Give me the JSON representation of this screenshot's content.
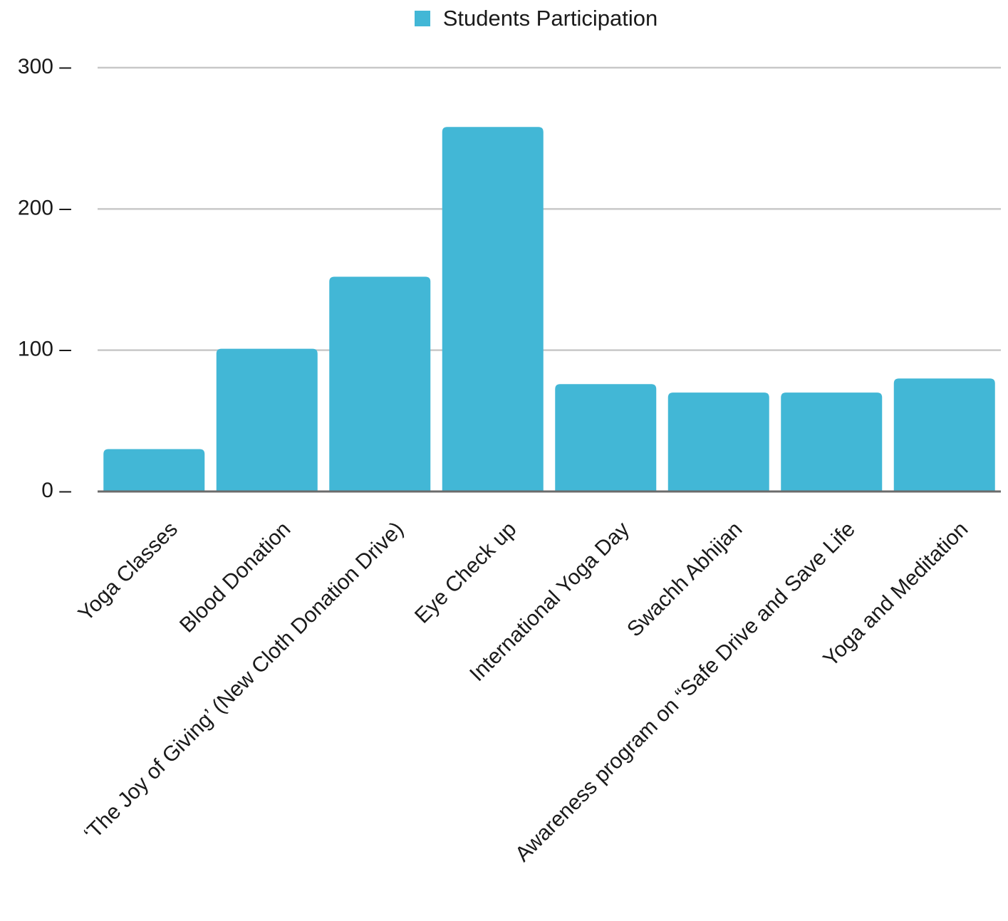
{
  "chart_data": {
    "type": "bar",
    "categories": [
      "Yoga Classes",
      "Blood Donation",
      "‘The Joy of Giving’ (New Cloth Donation Drive)",
      "Eye Check up",
      "International Yoga Day",
      "Swachh Abhijan",
      "Awareness program on “Safe Drive and Save Life",
      "Yoga and Meditation"
    ],
    "series": [
      {
        "name": "Students Participation",
        "values": [
          30,
          101,
          152,
          258,
          76,
          70,
          70,
          80
        ],
        "color": "#42B7D6"
      }
    ],
    "ylim": [
      0,
      300
    ],
    "yticks": [
      0,
      100,
      200,
      300
    ],
    "ytick_labels": [
      "0 –",
      "100 –",
      "200 –",
      "300 –"
    ],
    "grid": true,
    "legend_position": "top-center",
    "colors": {
      "bar": "#42B7D6",
      "grid": "#c8c8c8",
      "baseline": "#6b6b6b",
      "text": "#1a1a1a"
    }
  }
}
